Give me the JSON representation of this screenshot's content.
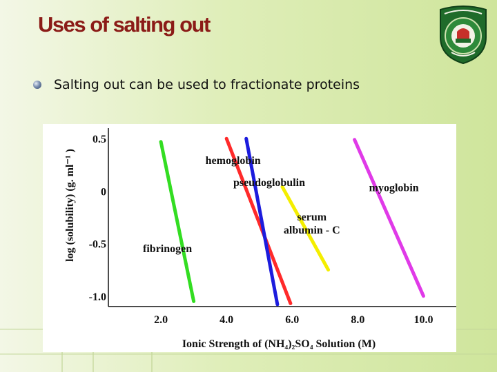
{
  "slide": {
    "title": "Uses of salting out",
    "bullet": "Salting out can be used to fractionate proteins"
  },
  "chart_data": {
    "type": "line",
    "xlabel": "Ionic Strength of (NH₄)₂SO₄ Solution (M)",
    "ylabel": "log (solubility) (g. ml⁻¹ )",
    "x_ticks": [
      "2.0",
      "4.0",
      "6.0",
      "8.0",
      "10.0"
    ],
    "y_ticks": [
      "0.5",
      "0",
      "-0.5",
      "-1.0"
    ],
    "xlim": [
      0.4,
      11.0
    ],
    "ylim": [
      -1.1,
      0.6
    ],
    "grid": false,
    "series": [
      {
        "name": "fibrinogen",
        "color": "#33dd22",
        "x": [
          2.0,
          3.0
        ],
        "y": [
          0.47,
          -1.05
        ]
      },
      {
        "name": "hemoglobin",
        "color": "#ff2a2a",
        "x": [
          4.0,
          5.95
        ],
        "y": [
          0.5,
          -1.07
        ]
      },
      {
        "name": "pseudoglobulin",
        "color": "#1c1cdd",
        "x": [
          4.6,
          5.55
        ],
        "y": [
          0.5,
          -1.08
        ]
      },
      {
        "name": "serum albumin - C",
        "color": "#f4ee00",
        "x": [
          5.7,
          7.1
        ],
        "y": [
          0.04,
          -0.75
        ]
      },
      {
        "name": "myoglobin",
        "color": "#e03ae8",
        "x": [
          7.9,
          10.0
        ],
        "y": [
          0.49,
          -1.0
        ]
      }
    ]
  }
}
